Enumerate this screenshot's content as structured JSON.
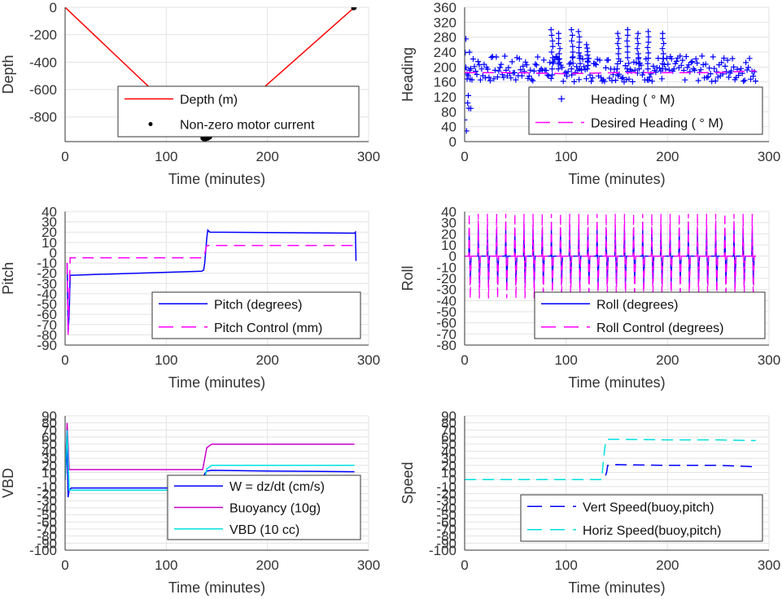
{
  "chart_data": [
    {
      "id": "depth",
      "type": "line",
      "xlabel": "Time (minutes)",
      "ylabel": "Depth",
      "xlim": [
        0,
        300
      ],
      "ylim": [
        -980,
        0
      ],
      "xticks": [
        "0",
        "100",
        "200",
        "300"
      ],
      "yticks": [
        "0",
        "-200",
        "-400",
        "-600",
        "-800"
      ],
      "grid": true,
      "legend_position": "bottom-center",
      "series": [
        {
          "name": "Depth (m)",
          "style": "solid",
          "color": "#ff0000",
          "x": [
            0,
            137,
            139,
            286
          ],
          "y": [
            0,
            -960,
            -960,
            0
          ]
        },
        {
          "name": "Non-zero motor current",
          "style": "dots",
          "color": "#000000",
          "x": [
            136,
            137,
            138,
            139,
            140,
            141,
            142,
            143,
            285,
            286
          ],
          "y": [
            -955,
            -960,
            -962,
            -960,
            -958,
            -956,
            -952,
            -948,
            -5,
            -2
          ]
        }
      ]
    },
    {
      "id": "heading",
      "type": "line",
      "xlabel": "Time (minutes)",
      "ylabel": "Heading",
      "xlim": [
        0,
        300
      ],
      "ylim": [
        0,
        360
      ],
      "xticks": [
        "0",
        "100",
        "200",
        "300"
      ],
      "yticks": [
        "0",
        "40",
        "80",
        "120",
        "160",
        "200",
        "240",
        "280",
        "320",
        "360"
      ],
      "grid": true,
      "legend_position": "bottom-right",
      "series": [
        {
          "name": "Heading (   ° M)",
          "style": "plus",
          "color": "#0000ff",
          "x_range": [
            0,
            287
          ],
          "center": 195,
          "band": 35,
          "spikes": [
            [
              85,
              300
            ],
            [
              92,
              290
            ],
            [
              105,
              300
            ],
            [
              112,
              295
            ],
            [
              120,
              260
            ],
            [
              150,
              290
            ],
            [
              160,
              300
            ],
            [
              170,
              290
            ],
            [
              180,
              295
            ],
            [
              195,
              290
            ]
          ]
        },
        {
          "name": "Desired Heading (      ° M)",
          "style": "dashed",
          "color": "#ff00ff",
          "x": [
            0,
            50,
            100,
            150,
            200,
            250,
            287
          ],
          "y": [
            185,
            185,
            182,
            185,
            185,
            185,
            190
          ]
        }
      ]
    },
    {
      "id": "pitch",
      "type": "line",
      "xlabel": "Time (minutes)",
      "ylabel": "Pitch",
      "xlim": [
        0,
        300
      ],
      "ylim": [
        -90,
        40
      ],
      "xticks": [
        "0",
        "100",
        "200",
        "300"
      ],
      "yticks": [
        "40",
        "30",
        "20",
        "10",
        "0",
        "-10",
        "-20",
        "-30",
        "-40",
        "-50",
        "-60",
        "-70",
        "-80",
        "-90"
      ],
      "grid": true,
      "legend_position": "bottom-right",
      "series": [
        {
          "name": "Pitch (degrees)",
          "style": "solid",
          "color": "#0000ff",
          "x": [
            2,
            3,
            4,
            5,
            6,
            135,
            137,
            138,
            140,
            141,
            143,
            286,
            287,
            287.5
          ],
          "y": [
            -10,
            -78,
            -60,
            -22,
            -22,
            -18,
            -17,
            -10,
            14,
            22,
            20,
            19,
            20,
            -8
          ]
        },
        {
          "name": "Pitch Control (mm)",
          "style": "dashed",
          "color": "#ff00ff",
          "x": [
            2,
            3,
            5,
            137,
            140,
            287
          ],
          "y": [
            -10,
            -80,
            -5,
            -5,
            7,
            7
          ]
        }
      ]
    },
    {
      "id": "roll",
      "type": "line",
      "xlabel": "Time (minutes)",
      "ylabel": "Roll",
      "xlim": [
        0,
        300
      ],
      "ylim": [
        -80,
        40
      ],
      "xticks": [
        "0",
        "100",
        "200",
        "300"
      ],
      "yticks": [
        "40",
        "30",
        "20",
        "10",
        "0",
        "-10",
        "-20",
        "-30",
        "-40",
        "-50",
        "-60",
        "-70",
        "-80"
      ],
      "grid": true,
      "legend_position": "bottom-right",
      "series": [
        {
          "name": "Roll (degrees)",
          "style": "solid",
          "color": "#0000ff",
          "x_range": [
            0,
            287
          ],
          "baseline": 0,
          "spike_every": 9,
          "spike_amp": 25
        },
        {
          "name": "Roll Control (degrees)",
          "style": "dashed",
          "color": "#ff00ff",
          "x_range": [
            0,
            287
          ],
          "baseline": 0,
          "spike_every": 9,
          "spike_amp": 38
        }
      ]
    },
    {
      "id": "vbd",
      "type": "line",
      "xlabel": "Time (minutes)",
      "ylabel": "VBD",
      "xlim": [
        0,
        300
      ],
      "ylim": [
        -100,
        90
      ],
      "xticks": [
        "0",
        "100",
        "200",
        "300"
      ],
      "yticks": [
        "90",
        "80",
        "70",
        "60",
        "50",
        "40",
        "30",
        "20",
        "10",
        "0",
        "-10",
        "-20",
        "-30",
        "-40",
        "-50",
        "-60",
        "-70",
        "-80",
        "-90",
        "-100"
      ],
      "grid": true,
      "legend_position": "bottom-right",
      "series": [
        {
          "name": "W = dz/dt (cm/s)",
          "style": "solid",
          "color": "#0000ff",
          "x": [
            0,
            2,
            3,
            4,
            6,
            135,
            136,
            137,
            138,
            140,
            145,
            200,
            286
          ],
          "y": [
            0,
            50,
            -25,
            -15,
            -12,
            -12,
            -5,
            5,
            8,
            12,
            13,
            12,
            11
          ]
        },
        {
          "name": "Buoyancy (10g)",
          "style": "solid",
          "color": "#cc00cc",
          "x": [
            0,
            2,
            4,
            6,
            134,
            136,
            140,
            145,
            200,
            286
          ],
          "y": [
            0,
            80,
            14,
            14,
            14,
            14,
            45,
            50,
            50,
            50
          ]
        },
        {
          "name": "VBD (10 cc)",
          "style": "solid",
          "color": "#00e0e0",
          "x": [
            0,
            2,
            4,
            6,
            134,
            136,
            140,
            145,
            200,
            286
          ],
          "y": [
            0,
            70,
            -15,
            -15,
            -15,
            -15,
            15,
            20,
            20,
            20
          ]
        }
      ]
    },
    {
      "id": "speed",
      "type": "line",
      "xlabel": "Time (minutes)",
      "ylabel": "Speed",
      "xlim": [
        0,
        300
      ],
      "ylim": [
        -100,
        90
      ],
      "xticks": [
        "0",
        "100",
        "200",
        "300"
      ],
      "yticks": [
        "90",
        "80",
        "70",
        "60",
        "50",
        "40",
        "30",
        "20",
        "10",
        "0",
        "-10",
        "-20",
        "-30",
        "-40",
        "-50",
        "-60",
        "-70",
        "-80",
        "-90",
        "-100"
      ],
      "grid": true,
      "legend_position": "bottom-right",
      "series": [
        {
          "name": "Vert Speed(buoy,pitch)",
          "style": "dashed",
          "color": "#0000ff",
          "x": [
            0,
            136,
            138,
            140,
            141,
            150,
            200,
            250,
            287
          ],
          "y": [
            0,
            0,
            2,
            10,
            20,
            21,
            20,
            20,
            18
          ]
        },
        {
          "name": "Horiz Speed(buoy,pitch)",
          "style": "dashed",
          "color": "#00e0e0",
          "x": [
            0,
            135,
            137,
            139,
            140,
            150,
            200,
            250,
            287
          ],
          "y": [
            0,
            0,
            30,
            55,
            57,
            57,
            56,
            56,
            55
          ]
        }
      ]
    }
  ]
}
